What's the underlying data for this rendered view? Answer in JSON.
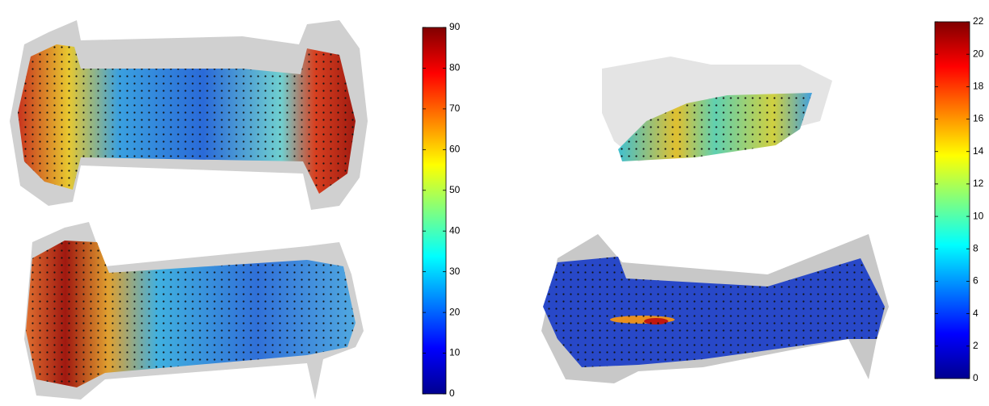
{
  "colorbars": [
    {
      "lim": [
        0,
        90
      ],
      "ticks": [
        0,
        10,
        20,
        30,
        40,
        50,
        60,
        70,
        80,
        90
      ]
    },
    {
      "lim": [
        0,
        22
      ],
      "ticks": [
        0,
        2,
        4,
        6,
        8,
        10,
        12,
        14,
        16,
        18,
        20,
        22
      ]
    }
  ]
}
